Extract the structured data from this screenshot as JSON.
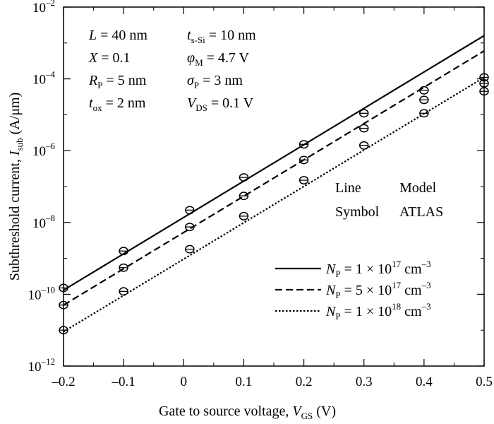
{
  "chart_data": {
    "type": "line",
    "xlabel": "Gate to source voltage, V_GS (V)",
    "ylabel": "Subthreshold current, I_sub (A/μm)",
    "x_axis": {
      "range": [
        -0.2,
        0.5
      ],
      "ticks": [
        -0.2,
        -0.1,
        0.0,
        0.1,
        0.2,
        0.3,
        0.4,
        0.5
      ],
      "tick_labels": [
        "–0.2",
        "–0.1",
        "0",
        "0.1",
        "0.2",
        "0.3",
        "0.4",
        "0.5"
      ]
    },
    "y_axis": {
      "scale": "log",
      "range": [
        1e-12,
        0.01
      ],
      "ticks": [
        1e-12,
        1e-10,
        1e-08,
        1e-06,
        0.0001,
        0.01
      ],
      "tick_base": "10",
      "tick_exponents": [
        "–12",
        "–10",
        "–8",
        "–6",
        "–4",
        "–2"
      ]
    },
    "parameters": [
      {
        "left": {
          "sym": "L",
          "val": " = 40 nm"
        },
        "right": {
          "sym": "t",
          "sub": "s-Si",
          "val": " = 10 nm"
        }
      },
      {
        "left": {
          "sym": "X",
          "val": " = 0.1"
        },
        "right": {
          "sym": "φ",
          "sub": "M",
          "val": " = 4.7 V"
        }
      },
      {
        "left": {
          "sym": "R",
          "sub": "P",
          "val": " = 5 nm"
        },
        "right": {
          "sym": "σ",
          "sub": "P",
          "val": " = 3 nm"
        }
      },
      {
        "left": {
          "sym": "t",
          "sub": "ox",
          "val": " = 2 nm"
        },
        "right": {
          "sym": "V",
          "sub": "DS",
          "val": " = 0.1 V"
        }
      }
    ],
    "key_table": {
      "row1": [
        "Line",
        "Model"
      ],
      "row2": [
        "Symbol",
        "ATLAS"
      ]
    },
    "legend_position": "bottom-right",
    "series": [
      {
        "name": "N_P = 1 × 10^17 cm^-3",
        "legend_parts": {
          "sym": "N",
          "sub": "P",
          "mid": " = 1 × 10",
          "exp": "17",
          "unit": " cm",
          "unit_exp": "–3"
        },
        "style": "solid",
        "model": {
          "x": [
            -0.2,
            0.5
          ],
          "y": [
            1.3e-10,
            0.0016
          ]
        },
        "atlas": {
          "x": [
            -0.2,
            -0.1,
            0.01,
            0.1,
            0.2,
            0.3,
            0.4,
            0.5
          ],
          "y": [
            1.5e-10,
            1.6e-09,
            2.2e-08,
            1.8e-07,
            1.5e-06,
            1.1e-05,
            4.8e-05,
            0.00011
          ]
        }
      },
      {
        "name": "N_P = 5 × 10^17 cm^-3",
        "legend_parts": {
          "sym": "N",
          "sub": "P",
          "mid": " = 5 × 10",
          "exp": "17",
          "unit": " cm",
          "unit_exp": "–3"
        },
        "style": "dashed",
        "model": {
          "x": [
            -0.2,
            0.5
          ],
          "y": [
            5e-11,
            0.0006
          ]
        },
        "atlas": {
          "x": [
            -0.2,
            -0.1,
            0.01,
            0.1,
            0.2,
            0.3,
            0.4,
            0.5
          ],
          "y": [
            5e-11,
            5.5e-10,
            7.5e-09,
            5.5e-08,
            5.5e-07,
            4.2e-06,
            2.6e-05,
            7.5e-05
          ]
        }
      },
      {
        "name": "N_P = 1 × 10^18 cm^-3",
        "legend_parts": {
          "sym": "N",
          "sub": "P",
          "mid": " = 1 × 10",
          "exp": "18",
          "unit": " cm",
          "unit_exp": "–3"
        },
        "style": "dotted",
        "model": {
          "x": [
            -0.2,
            0.5
          ],
          "y": [
            9e-12,
            0.00011
          ]
        },
        "atlas": {
          "x": [
            -0.2,
            -0.1,
            0.01,
            0.1,
            0.2,
            0.3,
            0.4,
            0.5
          ],
          "y": [
            1e-11,
            1.2e-10,
            1.8e-09,
            1.5e-08,
            1.5e-07,
            1.4e-06,
            1.1e-05,
            4.5e-05
          ]
        }
      }
    ]
  }
}
